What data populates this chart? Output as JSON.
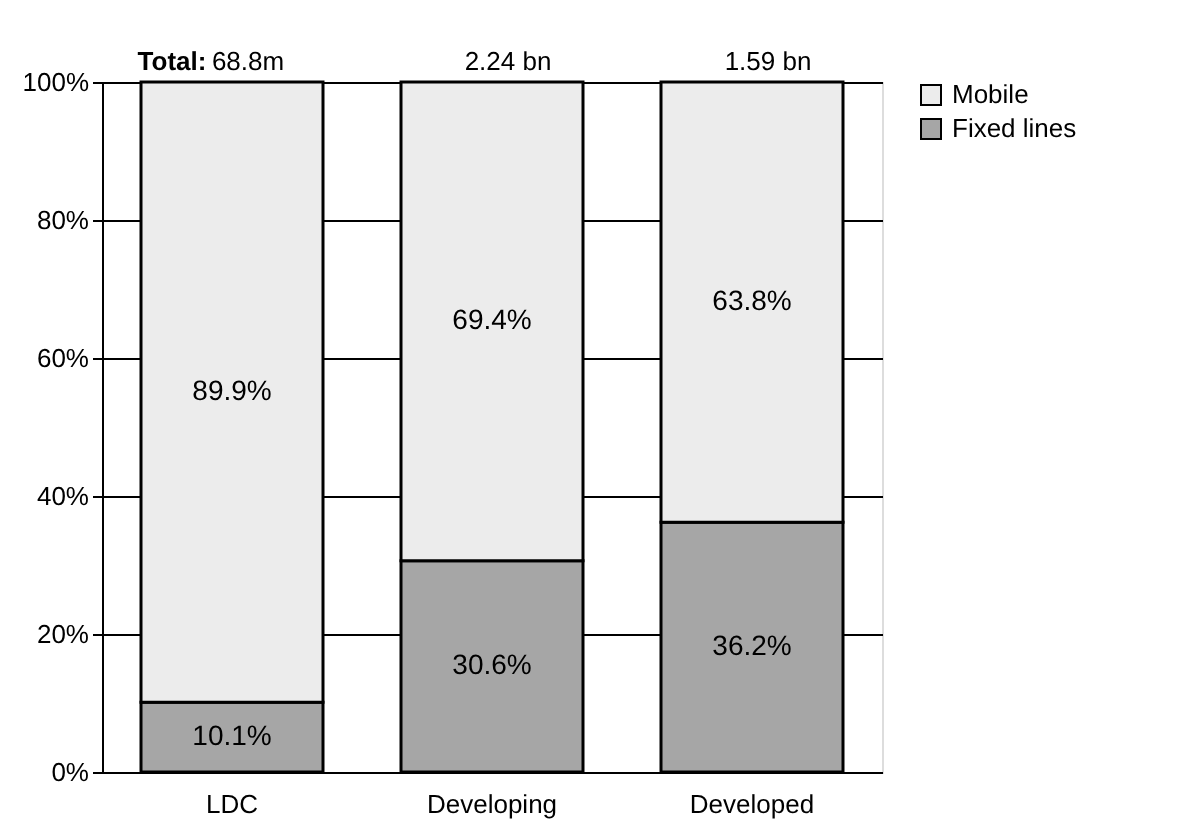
{
  "chart_data": {
    "type": "bar",
    "stacked": true,
    "categories": [
      "LDC",
      "Developing",
      "Developed"
    ],
    "series": [
      {
        "name": "Fixed lines",
        "color": "#a6a6a6",
        "values": [
          10.1,
          30.6,
          36.2
        ],
        "value_labels": [
          "10.1%",
          "30.6%",
          "36.2%"
        ]
      },
      {
        "name": "Mobile",
        "color": "#ececec",
        "values": [
          89.9,
          69.4,
          63.8
        ],
        "value_labels": [
          "89.9%",
          "69.4%",
          "63.8%"
        ]
      }
    ],
    "annotations": [
      "Total:",
      "68.8m",
      "2.24 bn",
      "1.59 bn"
    ],
    "ylim": [
      0,
      100
    ],
    "yticks": [
      {
        "value": 0,
        "label": "0%"
      },
      {
        "value": 20,
        "label": "20%"
      },
      {
        "value": 40,
        "label": "40%"
      },
      {
        "value": 60,
        "label": "60%"
      },
      {
        "value": 80,
        "label": "80%"
      },
      {
        "value": 100,
        "label": "100%"
      }
    ],
    "grid": "y",
    "legend": "right"
  }
}
